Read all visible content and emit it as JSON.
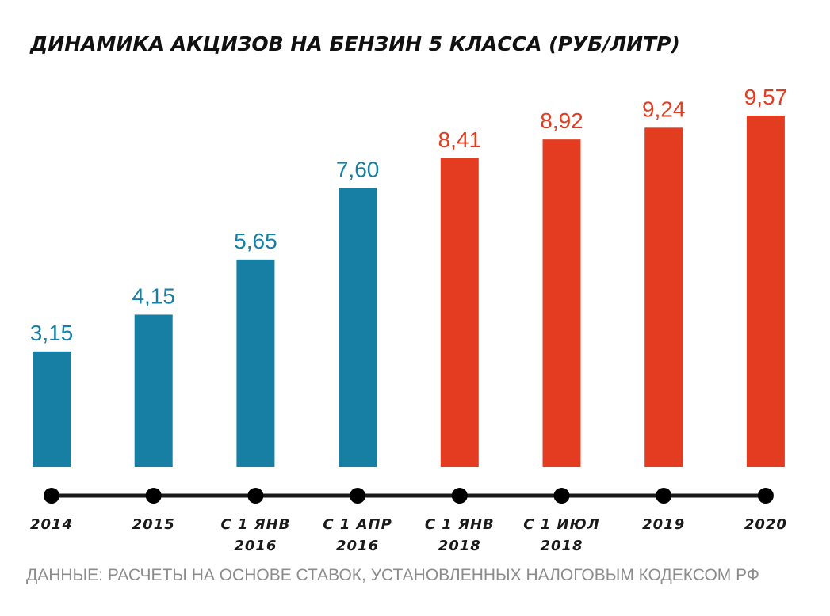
{
  "chart_data": {
    "type": "bar",
    "title": "ДИНАМИКА АКЦИЗОВ НА БЕНЗИН 5 КЛАССА (РУБ/ЛИТР)",
    "categories": [
      "2014",
      "2015",
      "С 1 ЯНВ 2016",
      "С 1 АПР 2016",
      "С 1 ЯНВ 2018",
      "С 1 ИЮЛ 2018",
      "2019",
      "2020"
    ],
    "values": [
      3.15,
      4.15,
      5.65,
      7.6,
      8.41,
      8.92,
      9.24,
      9.57
    ],
    "value_labels": [
      "3,15",
      "4,15",
      "5,65",
      "7,60",
      "8,41",
      "8,92",
      "9,24",
      "9,57"
    ],
    "bar_colors": [
      "#167fa3",
      "#167fa3",
      "#167fa3",
      "#167fa3",
      "#e43c20",
      "#e43c20",
      "#e43c20",
      "#e43c20"
    ],
    "ylim": [
      0,
      9.57
    ],
    "grid": false,
    "xlabel": "",
    "ylabel": "",
    "source": "ДАННЫЕ: РАСЧЕТЫ НА ОСНОВЕ СТАВОК, УСТАНОВЛЕННЫХ НАЛОГОВЫМ КОДЕКСОМ РФ"
  }
}
